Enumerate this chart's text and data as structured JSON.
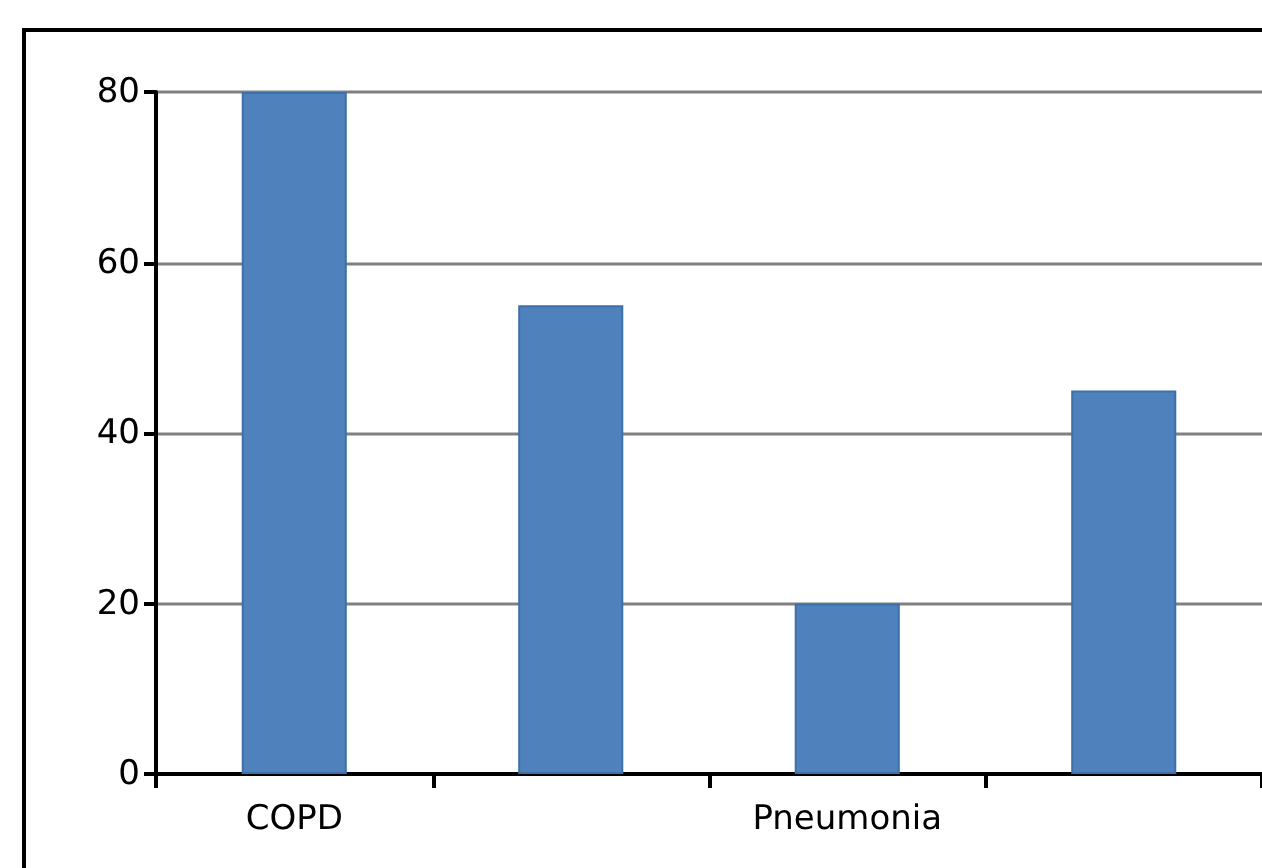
{
  "chart_data": {
    "type": "bar",
    "categories": [
      "COPD",
      null,
      "Pneumonia",
      null
    ],
    "values": [
      80,
      55,
      20,
      45
    ],
    "color": "#4f81bd",
    "ylim": [
      0,
      80
    ],
    "yticks": [
      0,
      20,
      40,
      60,
      80
    ],
    "grid": "y"
  }
}
